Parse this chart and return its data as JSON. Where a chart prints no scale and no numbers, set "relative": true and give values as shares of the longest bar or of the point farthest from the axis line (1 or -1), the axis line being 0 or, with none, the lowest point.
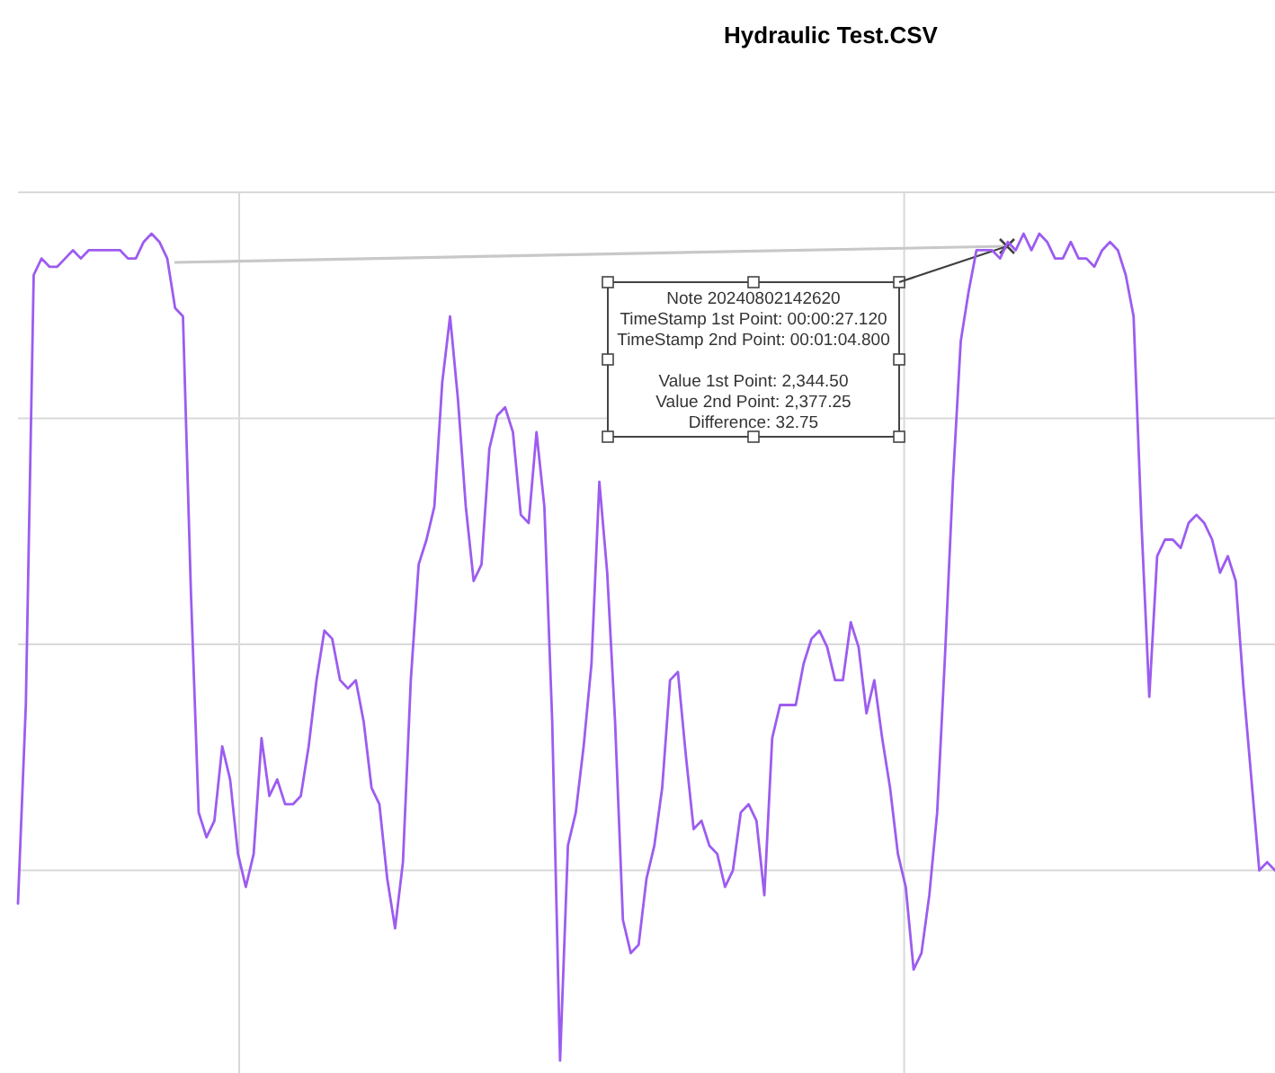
{
  "chart_data": {
    "type": "line",
    "title": "Hydraulic Test.CSV",
    "relative": true,
    "grid": true,
    "categories": [
      null,
      null,
      null,
      null,
      null,
      null,
      null,
      null,
      null,
      null,
      null,
      null,
      null,
      null,
      null,
      null,
      null,
      null,
      null,
      null,
      null,
      null,
      null,
      null,
      null,
      null,
      null,
      null,
      null,
      null,
      null,
      null,
      null,
      null,
      null,
      null,
      null,
      null,
      null,
      null,
      null,
      null,
      null,
      null,
      null,
      null,
      null,
      null,
      null,
      null,
      null,
      null,
      null,
      null,
      null,
      null,
      null,
      null,
      null,
      null,
      null,
      null,
      null,
      null,
      null,
      null,
      null,
      null,
      null,
      null,
      null,
      null,
      null,
      null,
      null,
      null,
      null,
      null,
      null,
      null,
      null,
      null,
      null,
      null,
      null,
      null,
      null,
      null,
      null,
      null,
      null,
      null,
      null,
      null,
      null,
      null,
      null,
      null,
      null,
      null,
      null,
      null,
      null,
      null,
      null,
      null,
      null,
      null,
      null,
      null,
      null,
      null,
      null,
      null,
      null,
      null,
      null,
      null,
      null,
      null,
      null,
      null,
      null,
      null,
      null,
      null,
      null,
      null,
      null,
      null,
      null,
      null,
      null,
      null,
      null,
      null,
      null,
      null,
      null,
      null,
      null,
      null,
      null,
      null,
      null,
      null,
      null,
      null,
      null,
      null,
      null,
      null,
      null,
      null,
      null,
      null,
      null,
      null,
      null,
      null,
      null
    ],
    "annotations": [
      "Note 20240802142620\nTimeStamp 1st Point: 00:00:27.120\nTimeStamp 2nd Point: 00:01:04.800\n\nValue 1st Point: 2,344.50\nValue 2nd Point: 2,377.25\nDifference: 32.75"
    ],
    "series": [
      {
        "color": "#9d5cf0",
        "values": [
          0.19,
          0.43,
          0.95,
          0.97,
          0.96,
          0.96,
          0.97,
          0.98,
          0.97,
          0.98,
          0.98,
          0.98,
          0.98,
          0.98,
          0.97,
          0.97,
          0.99,
          1.0,
          0.99,
          0.97,
          0.91,
          0.9,
          0.57,
          0.3,
          0.27,
          0.29,
          0.38,
          0.34,
          0.25,
          0.21,
          0.25,
          0.39,
          0.32,
          0.34,
          0.31,
          0.31,
          0.32,
          0.38,
          0.46,
          0.52,
          0.51,
          0.46,
          0.45,
          0.46,
          0.41,
          0.33,
          0.31,
          0.22,
          0.16,
          0.24,
          0.46,
          0.6,
          0.63,
          0.67,
          0.82,
          0.9,
          0.8,
          0.67,
          0.58,
          0.6,
          0.74,
          0.78,
          0.79,
          0.76,
          0.66,
          0.65,
          0.76,
          0.67,
          0.41,
          0.0,
          0.26,
          0.3,
          0.38,
          0.48,
          0.7,
          0.59,
          0.41,
          0.17,
          0.13,
          0.14,
          0.22,
          0.26,
          0.33,
          0.46,
          0.47,
          0.37,
          0.28,
          0.29,
          0.26,
          0.25,
          0.21,
          0.23,
          0.3,
          0.31,
          0.29,
          0.2,
          0.39,
          0.43,
          0.43,
          0.43,
          0.48,
          0.51,
          0.52,
          0.5,
          0.46,
          0.46,
          0.53,
          0.5,
          0.42,
          0.46,
          0.39,
          0.33,
          0.25,
          0.21,
          0.11,
          0.13,
          0.2,
          0.3,
          0.49,
          0.7,
          0.87,
          0.93,
          0.98,
          0.98,
          0.98,
          0.97,
          0.99,
          0.98,
          1.0,
          0.98,
          1.0,
          0.99,
          0.97,
          0.97,
          0.99,
          0.97,
          0.97,
          0.96,
          0.98,
          0.99,
          0.98,
          0.95,
          0.9,
          0.65,
          0.44,
          0.61,
          0.63,
          0.63,
          0.62,
          0.65,
          0.66,
          0.65,
          0.63,
          0.59,
          0.61,
          0.58,
          0.45,
          0.34,
          0.23,
          0.24,
          0.23
        ]
      }
    ]
  }
}
